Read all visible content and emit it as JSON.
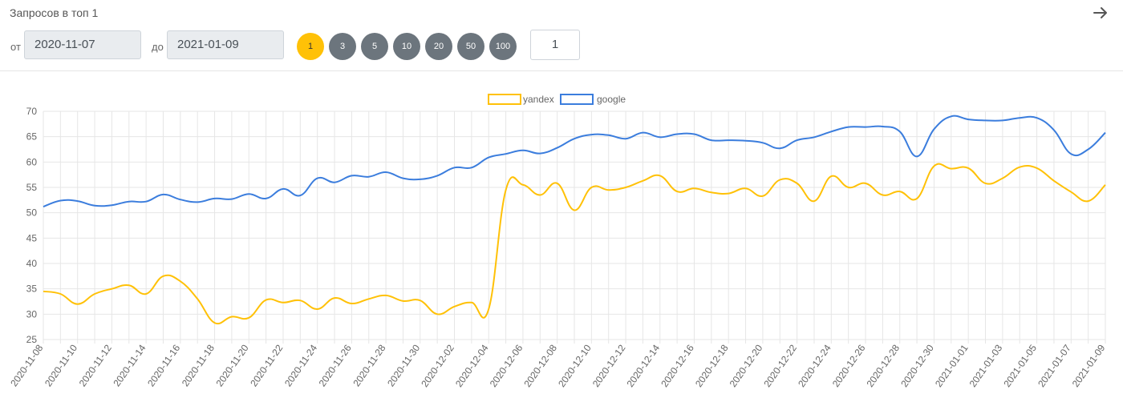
{
  "header": {
    "title": "Запросов в топ 1",
    "from_label": "от",
    "to_label": "до",
    "date_from": "2020-11-07",
    "date_to": "2021-01-09",
    "top_buttons": [
      "1",
      "3",
      "5",
      "10",
      "20",
      "50",
      "100"
    ],
    "active_top": "1",
    "number_value": "1",
    "arrow_icon": "arrow-right-icon"
  },
  "colors": {
    "yandex": "#ffc107",
    "google": "#3b7ddd",
    "active_pill": "#ffc107",
    "pill": "#6c757d"
  },
  "chart_data": {
    "type": "line",
    "legend_position": "top-center",
    "grid": true,
    "ylim": [
      25,
      70
    ],
    "yticks": [
      25,
      30,
      35,
      40,
      45,
      50,
      55,
      60,
      65,
      70
    ],
    "x": [
      "2020-11-08",
      "2020-11-09",
      "2020-11-10",
      "2020-11-11",
      "2020-11-12",
      "2020-11-13",
      "2020-11-14",
      "2020-11-15",
      "2020-11-16",
      "2020-11-17",
      "2020-11-18",
      "2020-11-19",
      "2020-11-20",
      "2020-11-21",
      "2020-11-22",
      "2020-11-23",
      "2020-11-24",
      "2020-11-25",
      "2020-11-26",
      "2020-11-27",
      "2020-11-28",
      "2020-11-29",
      "2020-11-30",
      "2020-12-01",
      "2020-12-02",
      "2020-12-03",
      "2020-12-04",
      "2020-12-05",
      "2020-12-06",
      "2020-12-07",
      "2020-12-08",
      "2020-12-09",
      "2020-12-10",
      "2020-12-11",
      "2020-12-12",
      "2020-12-13",
      "2020-12-14",
      "2020-12-15",
      "2020-12-16",
      "2020-12-17",
      "2020-12-18",
      "2020-12-19",
      "2020-12-20",
      "2020-12-21",
      "2020-12-22",
      "2020-12-23",
      "2020-12-24",
      "2020-12-25",
      "2020-12-26",
      "2020-12-27",
      "2020-12-28",
      "2020-12-29",
      "2020-12-30",
      "2020-12-31",
      "2021-01-01",
      "2021-01-02",
      "2021-01-03",
      "2021-01-04",
      "2021-01-05",
      "2021-01-06",
      "2021-01-07",
      "2021-01-08",
      "2021-01-09"
    ],
    "xtick_labels": [
      "2020-11-08",
      "2020-11-10",
      "2020-11-12",
      "2020-11-14",
      "2020-11-16",
      "2020-11-18",
      "2020-11-20",
      "2020-11-22",
      "2020-11-24",
      "2020-11-26",
      "2020-11-28",
      "2020-11-30",
      "2020-12-02",
      "2020-12-04",
      "2020-12-06",
      "2020-12-08",
      "2020-12-10",
      "2020-12-12",
      "2020-12-14",
      "2020-12-16",
      "2020-12-18",
      "2020-12-20",
      "2020-12-22",
      "2020-12-24",
      "2020-12-26",
      "2020-12-28",
      "2020-12-30",
      "2021-01-01",
      "2021-01-03",
      "2021-01-05",
      "2021-01-07",
      "2021-01-09"
    ],
    "series": [
      {
        "name": "yandex",
        "values": [
          34.5,
          34.0,
          32.0,
          34.0,
          35.0,
          35.7,
          34.0,
          37.5,
          36.5,
          33.0,
          28.3,
          29.5,
          29.3,
          32.8,
          32.3,
          32.7,
          31.0,
          33.2,
          32.1,
          33.0,
          33.7,
          32.6,
          32.7,
          30.0,
          31.5,
          32.3,
          31.0,
          54.5,
          55.5,
          53.5,
          55.8,
          50.5,
          55.0,
          54.5,
          55.0,
          56.3,
          57.3,
          54.2,
          54.8,
          54.0,
          53.8,
          54.8,
          53.3,
          56.5,
          55.8,
          52.3,
          57.2,
          55.0,
          55.8,
          53.5,
          54.2,
          52.8,
          59.2,
          58.7,
          58.8,
          55.8,
          56.8,
          59.0,
          58.8,
          56.3,
          54.1,
          52.3,
          55.5
        ]
      },
      {
        "name": "google",
        "values": [
          51.2,
          52.4,
          52.3,
          51.4,
          51.5,
          52.2,
          52.2,
          53.6,
          52.6,
          52.1,
          52.8,
          52.7,
          53.7,
          52.8,
          54.7,
          53.4,
          56.8,
          56.0,
          57.3,
          57.1,
          58.0,
          56.8,
          56.6,
          57.3,
          58.9,
          58.9,
          60.9,
          61.6,
          62.3,
          61.7,
          62.8,
          64.6,
          65.4,
          65.3,
          64.6,
          65.8,
          64.9,
          65.5,
          65.5,
          64.3,
          64.3,
          64.2,
          63.8,
          62.7,
          64.3,
          64.9,
          66.0,
          66.9,
          66.9,
          67.0,
          66.0,
          61.1,
          66.5,
          69.0,
          68.4,
          68.2,
          68.2,
          68.7,
          68.7,
          66.3,
          61.6,
          62.5,
          65.8
        ]
      }
    ]
  }
}
